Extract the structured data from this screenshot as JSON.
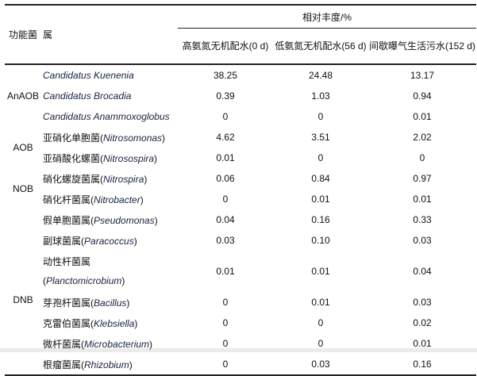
{
  "header": {
    "group": "功能菌",
    "genus": "属",
    "abundance": "相对丰度/%",
    "columns": [
      "高氨氮无机配水(0 d)",
      "低氨氮无机配水(56 d)",
      "间歇曝气生活污水(152 d)"
    ]
  },
  "groups": [
    {
      "label": "AnAOB",
      "start": 0,
      "span": 3
    },
    {
      "label": "AOB",
      "start": 3,
      "span": 2
    },
    {
      "label": "NOB",
      "start": 5,
      "span": 2
    },
    {
      "label": "DNB",
      "start": 7,
      "span": 7
    }
  ],
  "rows": [
    {
      "cn": "",
      "latin": "Candidatus Kuenenia",
      "values": [
        "38.25",
        "24.48",
        "13.17"
      ]
    },
    {
      "cn": "",
      "latin": "Candidatus Brocadia",
      "values": [
        "0.39",
        "1.03",
        "0.94"
      ]
    },
    {
      "cn": "",
      "latin": "Candidatus Anammoxoglobus",
      "values": [
        "0",
        "0",
        "0.01"
      ]
    },
    {
      "cn": "亚硝化单胞菌",
      "latin": "Nitrosomonas",
      "values": [
        "4.62",
        "3.51",
        "2.02"
      ]
    },
    {
      "cn": "亚硝酸化螺菌",
      "latin": "Nitrosospira",
      "values": [
        "0.01",
        "0",
        "0"
      ]
    },
    {
      "cn": "硝化螺旋菌属",
      "latin": "Nitrospira",
      "values": [
        "0.06",
        "0.84",
        "0.97"
      ]
    },
    {
      "cn": "硝化杆菌属",
      "latin": "Nitrobacter",
      "values": [
        "0",
        "0.01",
        "0.01"
      ]
    },
    {
      "cn": "假单胞菌属",
      "latin": "Pseudomonas",
      "values": [
        "0.04",
        "0.16",
        "0.33"
      ]
    },
    {
      "cn": "副球菌属",
      "latin": "Paracoccus",
      "values": [
        "0.03",
        "0.10",
        "0.03"
      ]
    },
    {
      "cn": "动性杆菌属",
      "latin": "Planctomicrobium",
      "values": [
        "0.01",
        "0.01",
        "0.04"
      ]
    },
    {
      "cn": "芽孢杆菌属",
      "latin": "Bacillus",
      "values": [
        "0",
        "0.01",
        "0.03"
      ]
    },
    {
      "cn": "克雷伯菌属",
      "latin": "Klebsiella",
      "values": [
        "0",
        "0",
        "0.02"
      ]
    },
    {
      "cn": "微杆菌属",
      "latin": "Microbacterium",
      "values": [
        "0",
        "0",
        "0.01"
      ]
    },
    {
      "cn": "根瘤菌属",
      "latin": "Rhizobium",
      "values": [
        "0",
        "0.03",
        "0.16"
      ]
    }
  ]
}
